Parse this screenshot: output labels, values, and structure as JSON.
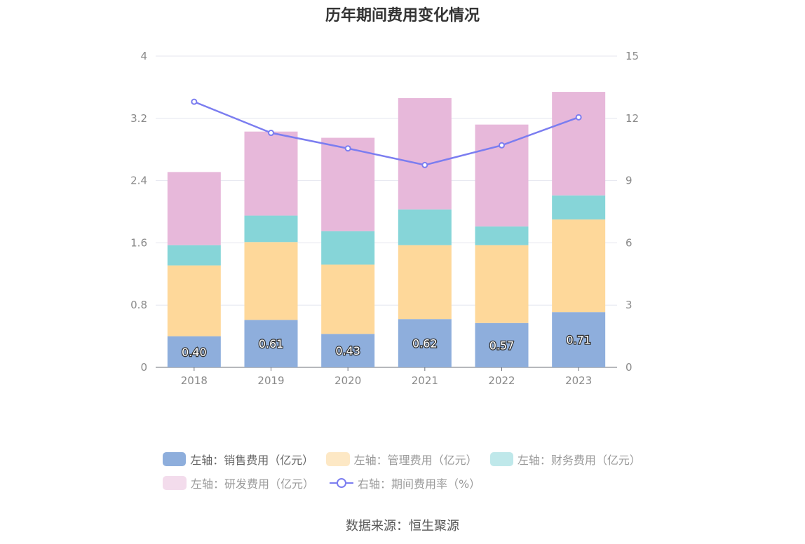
{
  "title": "历年期间费用变化情况",
  "source": "数据来源：恒生聚源",
  "colors": {
    "sales": "#8eaedc",
    "mgmt": "#fed89a",
    "finance": "#86d5d8",
    "rnd": "#e7b8da",
    "rate": "#7b7df0",
    "legend_mgmt": "#fde8c5",
    "legend_finance": "#bfe8ea",
    "legend_rnd": "#f3dcec"
  },
  "legend": [
    {
      "label": "左轴：销售费用（亿元）"
    },
    {
      "label": "左轴：管理费用（亿元）"
    },
    {
      "label": "左轴：财务费用（亿元）"
    },
    {
      "label": "左轴：研发费用（亿元）"
    },
    {
      "label": "右轴：期间费用率（%）"
    }
  ],
  "chart_data": {
    "type": "bar",
    "stacked": true,
    "categories": [
      "2018",
      "2019",
      "2020",
      "2021",
      "2022",
      "2023"
    ],
    "series": [
      {
        "name": "左轴：销售费用（亿元）",
        "axis": "left",
        "values": [
          0.4,
          0.61,
          0.43,
          0.62,
          0.57,
          0.71
        ],
        "labels": [
          "0.40",
          "0.61",
          "0.43",
          "0.62",
          "0.57",
          "0.71"
        ]
      },
      {
        "name": "左轴：管理费用（亿元）",
        "axis": "left",
        "values": [
          0.91,
          1.0,
          0.89,
          0.95,
          1.0,
          1.19
        ]
      },
      {
        "name": "左轴：财务费用（亿元）",
        "axis": "left",
        "values": [
          0.26,
          0.34,
          0.43,
          0.46,
          0.24,
          0.31
        ]
      },
      {
        "name": "左轴：研发费用（亿元）",
        "axis": "left",
        "values": [
          0.94,
          1.08,
          1.2,
          1.43,
          1.31,
          1.33
        ]
      },
      {
        "name": "右轴：期间费用率（%）",
        "axis": "right",
        "type": "line",
        "values": [
          12.8,
          11.3,
          10.55,
          9.75,
          10.7,
          12.05
        ]
      }
    ],
    "left_axis": {
      "ylim": [
        0,
        4
      ],
      "ticks": [
        "0",
        "0.8",
        "1.6",
        "2.4",
        "3.2",
        "4"
      ]
    },
    "right_axis": {
      "ylim": [
        0,
        15
      ],
      "ticks": [
        "0",
        "3",
        "6",
        "9",
        "12",
        "15"
      ]
    },
    "grid": true,
    "legend_position": "bottom"
  }
}
